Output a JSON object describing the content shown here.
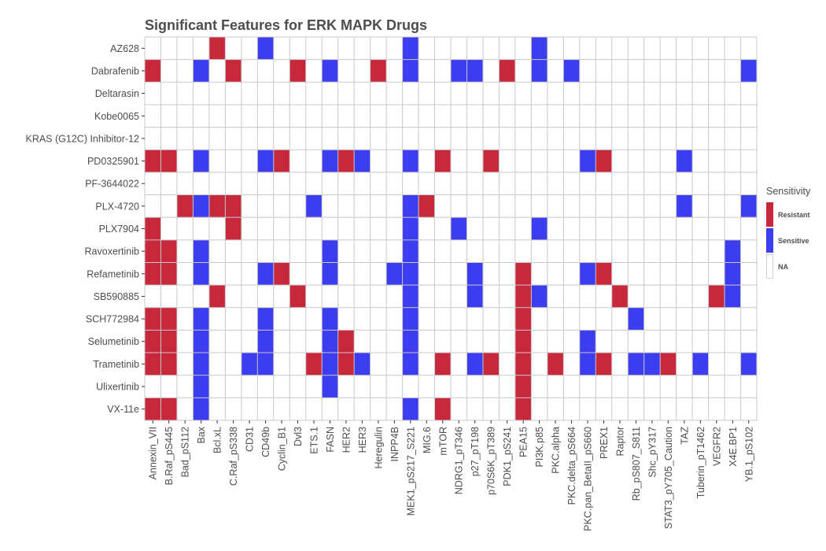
{
  "chart_data": {
    "type": "heatmap",
    "title": "Significant Features for ERK MAPK Drugs",
    "rows": [
      "AZ628",
      "Dabrafenib",
      "Deltarasin",
      "Kobe0065",
      "KRAS (G12C) Inhibitor-12",
      "PD0325901",
      "PF-3644022",
      "PLX-4720",
      "PLX7904",
      "Ravoxertinib",
      "Refametinib",
      "SB590885",
      "SCH772984",
      "Selumetinib",
      "Trametinib",
      "Ulixertinib",
      "VX-11e"
    ],
    "columns": [
      "Annexin_VII",
      "B.Raf_pS445",
      "Bad_pS112",
      "Bax",
      "Bcl.xL",
      "C.Raf_pS338",
      "CD31",
      "CD49b",
      "Cyclin_B1",
      "Dvl3",
      "ETS.1",
      "FASN",
      "HER2",
      "HER3",
      "Heregulin",
      "INPP4B",
      "MEK1_pS217_S221",
      "MIG.6",
      "mTOR",
      "NDRG1_pT346",
      "p27_pT198",
      "p70S6K_pT389",
      "PDK1_pS241",
      "PEA15",
      "PI3K.p85",
      "PKC.alpha",
      "PKC.delta_pS664",
      "PKC.pan_BetaII_pS660",
      "PREX1",
      "Raptor",
      "Rb_pS807_S811",
      "Shc_pY317",
      "STAT3_pY705_Caution",
      "TAZ",
      "Tuberin_pT1462",
      "VEGFR2",
      "X4E.BP1",
      "YB.1_pS102"
    ],
    "cells": {
      "AZ628": {
        "Bcl.xL": "Resistant",
        "CD49b": "Sensitive",
        "MEK1_pS217_S221": "Sensitive",
        "PI3K.p85": "Sensitive"
      },
      "Dabrafenib": {
        "Annexin_VII": "Resistant",
        "Bax": "Sensitive",
        "C.Raf_pS338": "Resistant",
        "Dvl3": "Resistant",
        "FASN": "Sensitive",
        "Heregulin": "Resistant",
        "MEK1_pS217_S221": "Sensitive",
        "NDRG1_pT346": "Sensitive",
        "p27_pT198": "Sensitive",
        "PDK1_pS241": "Resistant",
        "PI3K.p85": "Sensitive",
        "PKC.delta_pS664": "Sensitive",
        "YB.1_pS102": "Sensitive"
      },
      "Deltarasin": {},
      "Kobe0065": {},
      "KRAS (G12C) Inhibitor-12": {},
      "PD0325901": {
        "Annexin_VII": "Resistant",
        "B.Raf_pS445": "Resistant",
        "Bax": "Sensitive",
        "CD49b": "Sensitive",
        "Cyclin_B1": "Resistant",
        "FASN": "Sensitive",
        "HER2": "Resistant",
        "HER3": "Sensitive",
        "MEK1_pS217_S221": "Sensitive",
        "mTOR": "Resistant",
        "p70S6K_pT389": "Resistant",
        "PKC.pan_BetaII_pS660": "Sensitive",
        "PREX1": "Resistant",
        "TAZ": "Sensitive"
      },
      "PF-3644022": {},
      "PLX-4720": {
        "Bad_pS112": "Resistant",
        "Bax": "Sensitive",
        "Bcl.xL": "Resistant",
        "C.Raf_pS338": "Resistant",
        "ETS.1": "Sensitive",
        "MEK1_pS217_S221": "Sensitive",
        "MIG.6": "Resistant",
        "TAZ": "Sensitive",
        "YB.1_pS102": "Sensitive"
      },
      "PLX7904": {
        "Annexin_VII": "Resistant",
        "C.Raf_pS338": "Resistant",
        "MEK1_pS217_S221": "Sensitive",
        "NDRG1_pT346": "Sensitive",
        "PI3K.p85": "Sensitive"
      },
      "Ravoxertinib": {
        "Annexin_VII": "Resistant",
        "B.Raf_pS445": "Resistant",
        "Bax": "Sensitive",
        "FASN": "Sensitive",
        "MEK1_pS217_S221": "Sensitive",
        "X4E.BP1": "Sensitive"
      },
      "Refametinib": {
        "Annexin_VII": "Resistant",
        "B.Raf_pS445": "Resistant",
        "Bax": "Sensitive",
        "CD49b": "Sensitive",
        "Cyclin_B1": "Resistant",
        "FASN": "Sensitive",
        "INPP4B": "Sensitive",
        "MEK1_pS217_S221": "Sensitive",
        "p27_pT198": "Sensitive",
        "PEA15": "Resistant",
        "PKC.pan_BetaII_pS660": "Sensitive",
        "PREX1": "Resistant",
        "X4E.BP1": "Sensitive"
      },
      "SB590885": {
        "Bcl.xL": "Resistant",
        "Dvl3": "Resistant",
        "MEK1_pS217_S221": "Sensitive",
        "p27_pT198": "Sensitive",
        "PEA15": "Resistant",
        "PI3K.p85": "Sensitive",
        "Raptor": "Resistant",
        "VEGFR2": "Resistant",
        "X4E.BP1": "Sensitive"
      },
      "SCH772984": {
        "Annexin_VII": "Resistant",
        "B.Raf_pS445": "Resistant",
        "Bax": "Sensitive",
        "CD49b": "Sensitive",
        "FASN": "Sensitive",
        "MEK1_pS217_S221": "Sensitive",
        "PEA15": "Resistant",
        "Rb_pS807_S811": "Sensitive"
      },
      "Selumetinib": {
        "Annexin_VII": "Resistant",
        "B.Raf_pS445": "Resistant",
        "Bax": "Sensitive",
        "CD49b": "Sensitive",
        "FASN": "Sensitive",
        "HER2": "Resistant",
        "MEK1_pS217_S221": "Sensitive",
        "PEA15": "Resistant",
        "PKC.pan_BetaII_pS660": "Sensitive"
      },
      "Trametinib": {
        "Annexin_VII": "Resistant",
        "B.Raf_pS445": "Resistant",
        "Bax": "Sensitive",
        "CD31": "Sensitive",
        "CD49b": "Sensitive",
        "ETS.1": "Resistant",
        "FASN": "Sensitive",
        "HER2": "Resistant",
        "HER3": "Sensitive",
        "MEK1_pS217_S221": "Sensitive",
        "mTOR": "Resistant",
        "p27_pT198": "Sensitive",
        "p70S6K_pT389": "Resistant",
        "PEA15": "Resistant",
        "PKC.alpha": "Resistant",
        "PKC.pan_BetaII_pS660": "Sensitive",
        "PREX1": "Resistant",
        "Rb_pS807_S811": "Sensitive",
        "Shc_pY317": "Sensitive",
        "STAT3_pY705_Caution": "Resistant",
        "Tuberin_pT1462": "Sensitive",
        "YB.1_pS102": "Sensitive"
      },
      "Ulixertinib": {
        "Bax": "Sensitive",
        "FASN": "Sensitive",
        "PEA15": "Resistant"
      },
      "VX-11e": {
        "Annexin_VII": "Resistant",
        "B.Raf_pS445": "Resistant",
        "Bax": "Sensitive",
        "MEK1_pS217_S221": "Sensitive",
        "mTOR": "Resistant",
        "PEA15": "Resistant"
      }
    },
    "legend": {
      "title": "Sensitivity",
      "placement": "right",
      "entries": [
        {
          "label": "Resistant",
          "color": "#c8283c"
        },
        {
          "label": "Sensitive",
          "color": "#3c3cf0"
        },
        {
          "label": "NA",
          "color": "#ffffff"
        }
      ]
    },
    "grid": true,
    "gridColor": "#c8c8c8"
  }
}
